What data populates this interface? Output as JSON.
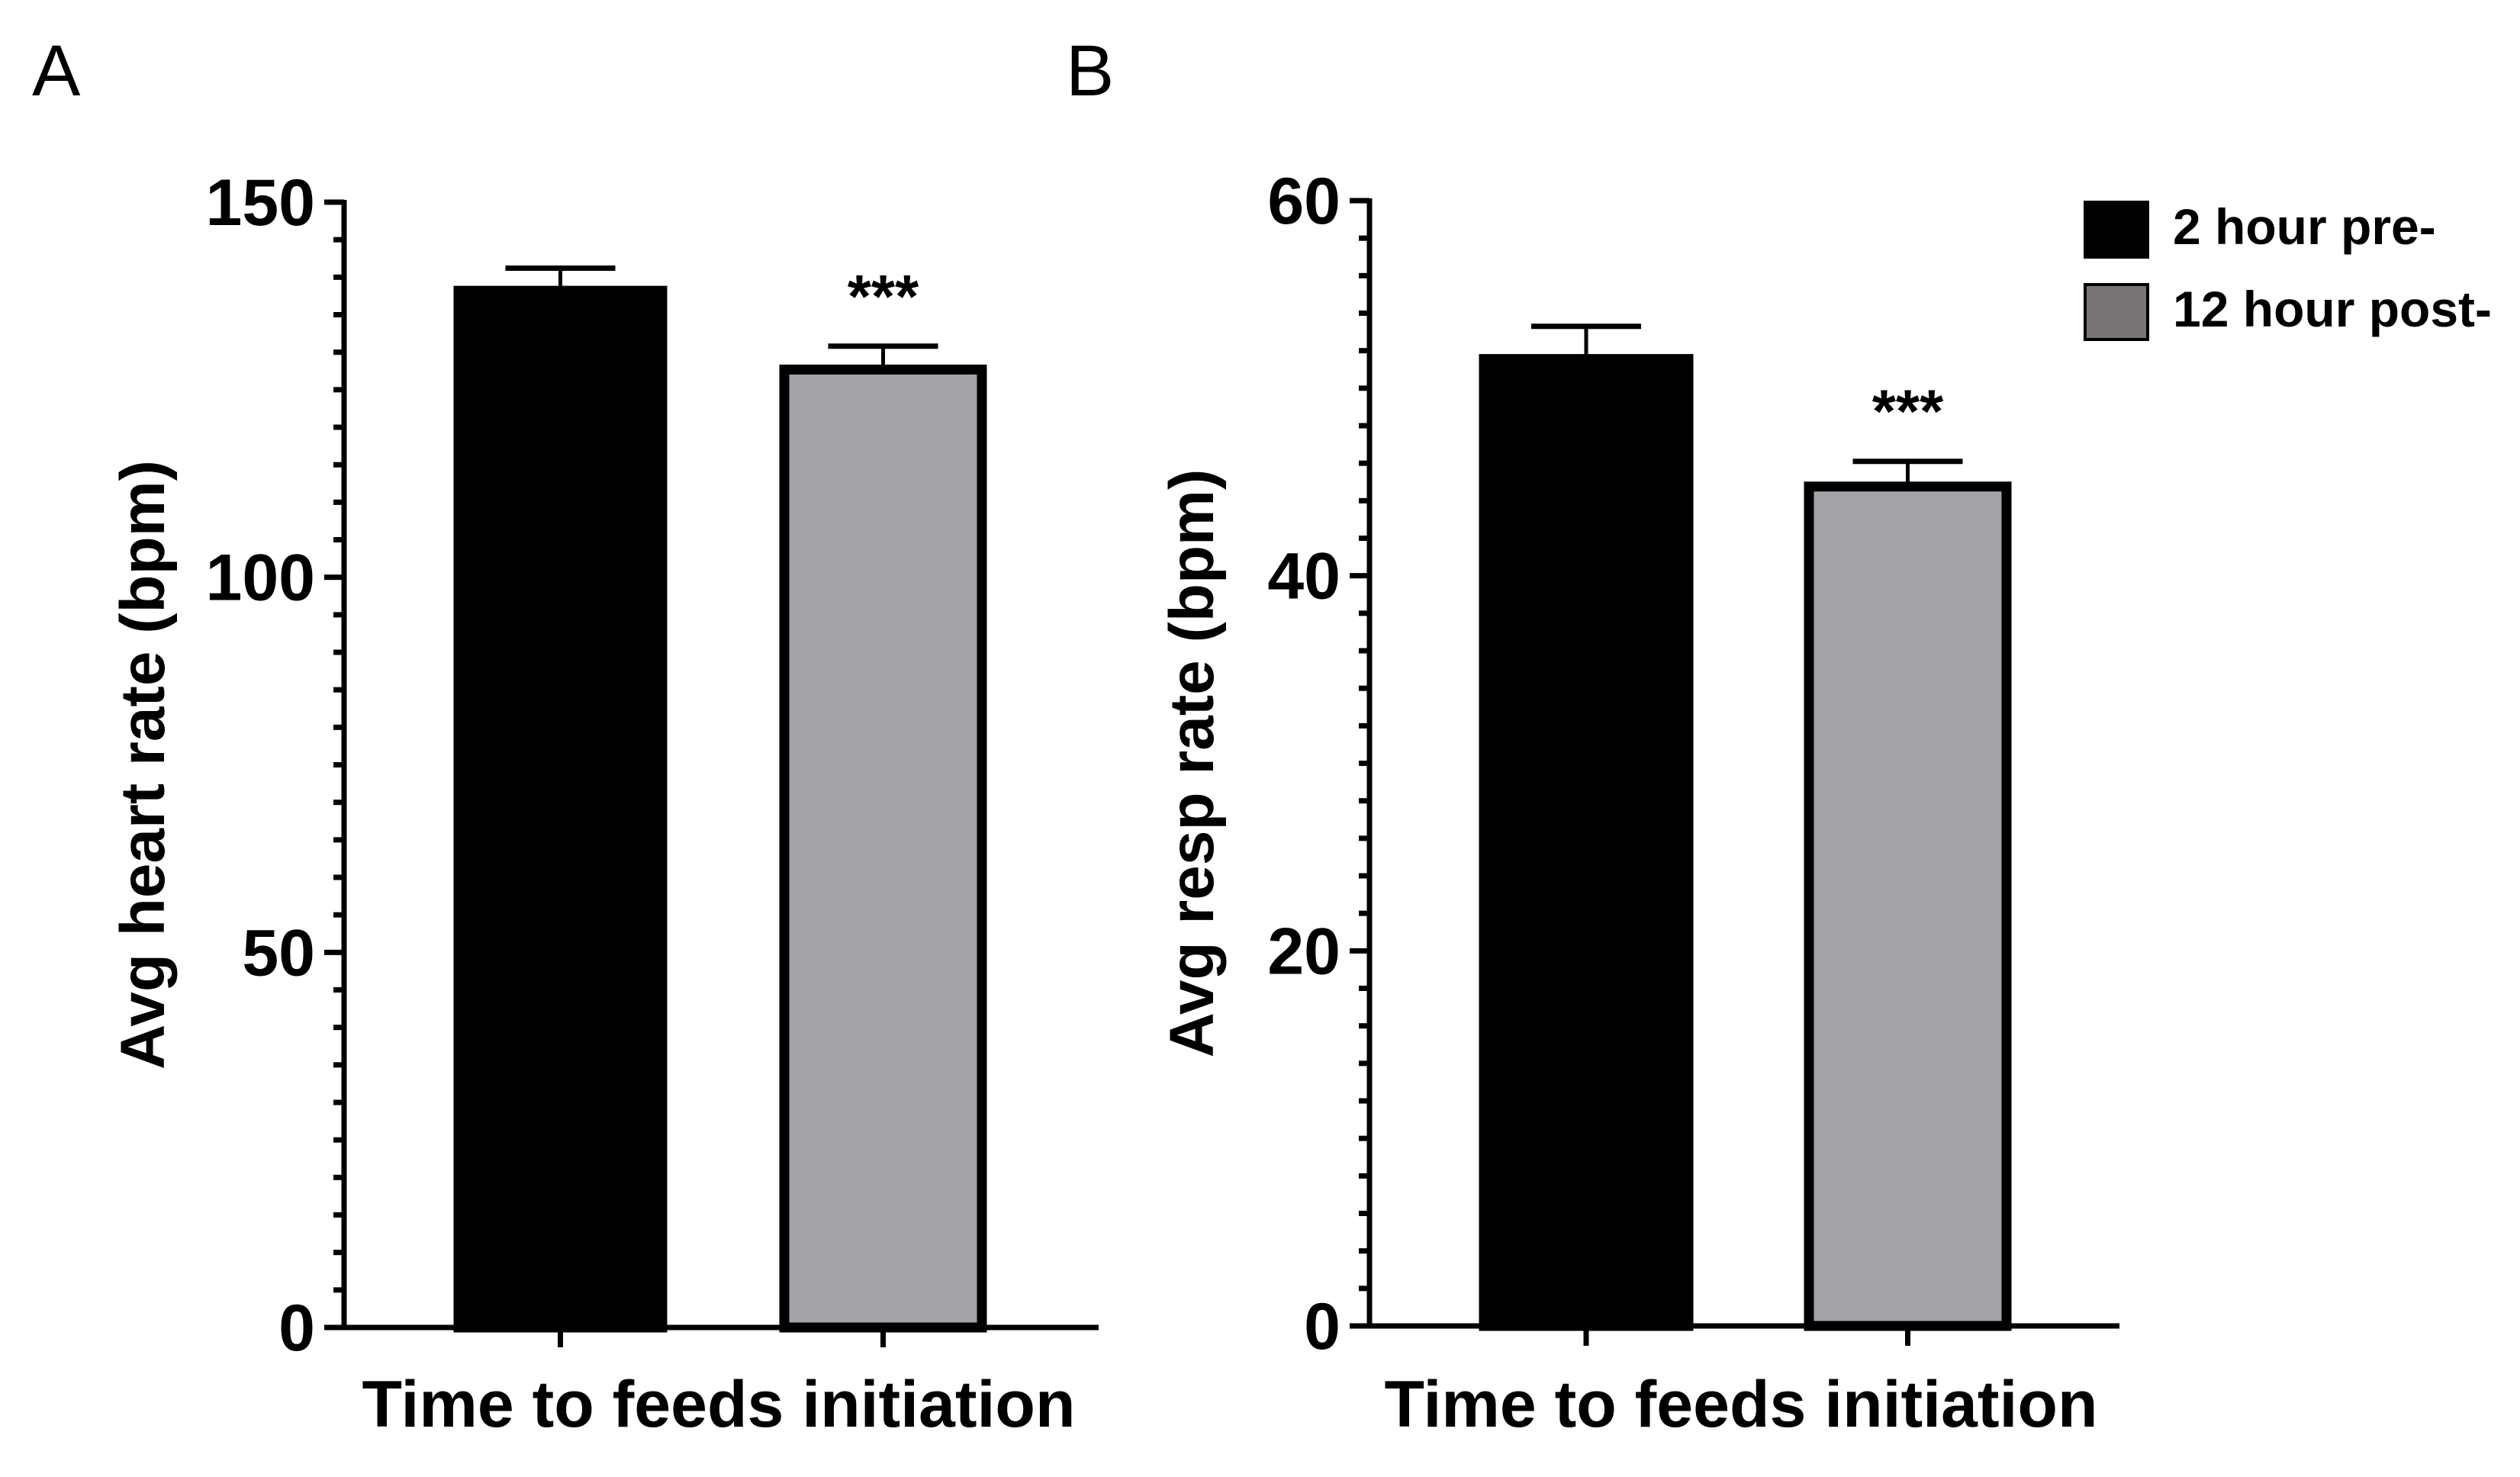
{
  "chart_data": [
    {
      "panel": "A",
      "type": "bar",
      "categories": [
        "2 hour pre-",
        "12 hour post-"
      ],
      "values": [
        138.8,
        128.3
      ],
      "error_upper": [
        141.2,
        130.8
      ],
      "colors": [
        "#000000",
        "#a3a4a7"
      ],
      "significance": [
        "",
        "***"
      ],
      "xlabel": "Time to feeds initiation",
      "ylabel": "Avg heart rate (bpm)",
      "ylim": [
        0,
        150
      ],
      "yticks": [
        0,
        50,
        100,
        150
      ],
      "ytick_labels": [
        "0",
        "50",
        "100",
        "150"
      ],
      "minor_tick_step": 5
    },
    {
      "panel": "B",
      "type": "bar",
      "categories": [
        "2 hour pre-",
        "12 hour post-"
      ],
      "values": [
        51.8,
        45.0
      ],
      "error_upper": [
        53.3,
        46.1
      ],
      "colors": [
        "#000000",
        "#a3a4a7"
      ],
      "significance": [
        "",
        "***"
      ],
      "xlabel": "Time to feeds initiation",
      "ylabel": "Avg resp rate (bpm)",
      "ylim": [
        0,
        60
      ],
      "yticks": [
        0,
        20,
        40,
        60
      ],
      "ytick_labels": [
        "0",
        "20",
        "40",
        "60"
      ],
      "minor_tick_step": 2
    }
  ],
  "legend": {
    "placement": "top-right",
    "items": [
      {
        "label": "2 hour pre-",
        "color": "#000000"
      },
      {
        "label": "12 hour post-",
        "color": "#7a7575"
      }
    ]
  }
}
